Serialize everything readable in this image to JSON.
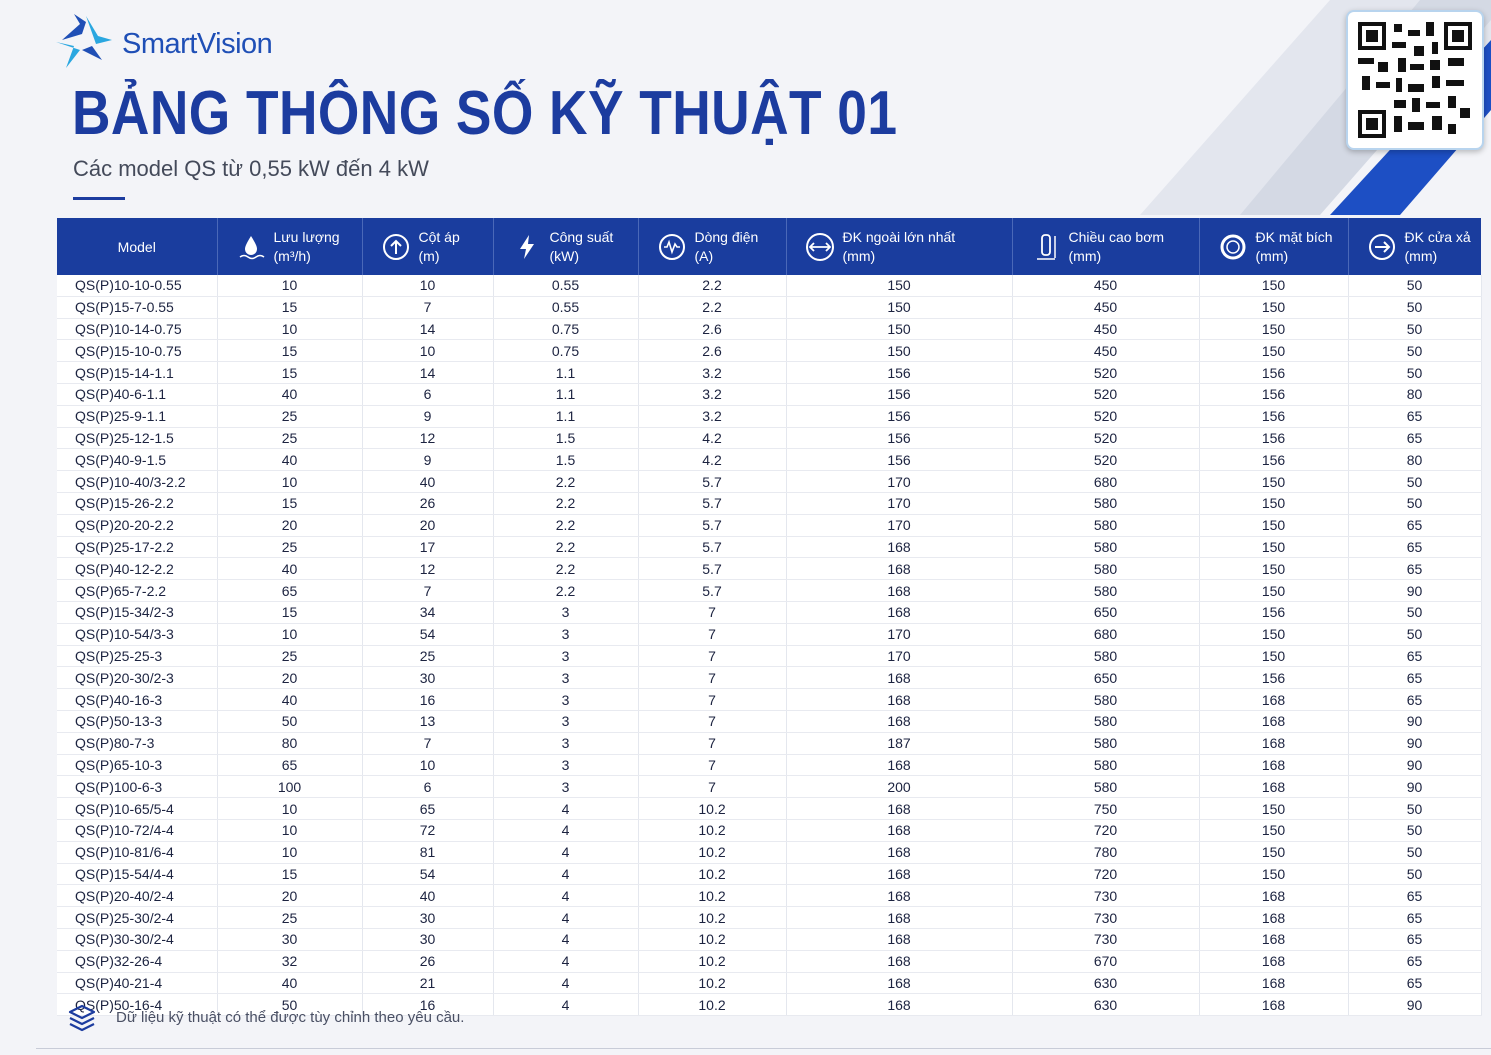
{
  "header": {
    "brand": "SmartVision",
    "title": "BẢNG THÔNG SỐ KỸ THUẬT 01",
    "subtitle": "Các model QS từ 0,55 kW đến 4 kW"
  },
  "table": {
    "headers": [
      {
        "label": "Model"
      },
      {
        "label": "Lưu lượng",
        "unit": "(m³/h)"
      },
      {
        "label": "Cột áp",
        "unit": "(m)"
      },
      {
        "label": "Công suất",
        "unit": "(kW)"
      },
      {
        "label": "Dòng điện",
        "unit": "(A)"
      },
      {
        "label": "ĐK ngoài lớn nhất",
        "unit": "(mm)"
      },
      {
        "label": "Chiều cao bơm",
        "unit": "(mm)"
      },
      {
        "label": "ĐK mặt bích",
        "unit": "(mm)"
      },
      {
        "label": "ĐK cửa xả",
        "unit": "(mm)"
      }
    ],
    "rows": [
      [
        "QS(P)10-10-0.55",
        10,
        10,
        0.55,
        2.2,
        150,
        450,
        150,
        50
      ],
      [
        "QS(P)15-7-0.55",
        15,
        7,
        0.55,
        2.2,
        150,
        450,
        150,
        50
      ],
      [
        "QS(P)10-14-0.75",
        10,
        14,
        0.75,
        2.6,
        150,
        450,
        150,
        50
      ],
      [
        "QS(P)15-10-0.75",
        15,
        10,
        0.75,
        2.6,
        150,
        450,
        150,
        50
      ],
      [
        "QS(P)15-14-1.1",
        15,
        14,
        1.1,
        3.2,
        156,
        520,
        156,
        50
      ],
      [
        "QS(P)40-6-1.1",
        40,
        6,
        1.1,
        3.2,
        156,
        520,
        156,
        80
      ],
      [
        "QS(P)25-9-1.1",
        25,
        9,
        1.1,
        3.2,
        156,
        520,
        156,
        65
      ],
      [
        "QS(P)25-12-1.5",
        25,
        12,
        1.5,
        4.2,
        156,
        520,
        156,
        65
      ],
      [
        "QS(P)40-9-1.5",
        40,
        9,
        1.5,
        4.2,
        156,
        520,
        156,
        80
      ],
      [
        "QS(P)10-40/3-2.2",
        10,
        40,
        2.2,
        5.7,
        170,
        680,
        150,
        50
      ],
      [
        "QS(P)15-26-2.2",
        15,
        26,
        2.2,
        5.7,
        170,
        580,
        150,
        50
      ],
      [
        "QS(P)20-20-2.2",
        20,
        20,
        2.2,
        5.7,
        170,
        580,
        150,
        65
      ],
      [
        "QS(P)25-17-2.2",
        25,
        17,
        2.2,
        5.7,
        168,
        580,
        150,
        65
      ],
      [
        "QS(P)40-12-2.2",
        40,
        12,
        2.2,
        5.7,
        168,
        580,
        150,
        65
      ],
      [
        "QS(P)65-7-2.2",
        65,
        7,
        2.2,
        5.7,
        168,
        580,
        150,
        90
      ],
      [
        "QS(P)15-34/2-3",
        15,
        34,
        3,
        7,
        168,
        650,
        156,
        50
      ],
      [
        "QS(P)10-54/3-3",
        10,
        54,
        3,
        7,
        170,
        680,
        150,
        50
      ],
      [
        "QS(P)25-25-3",
        25,
        25,
        3,
        7,
        170,
        580,
        150,
        65
      ],
      [
        "QS(P)20-30/2-3",
        20,
        30,
        3,
        7,
        168,
        650,
        156,
        65
      ],
      [
        "QS(P)40-16-3",
        40,
        16,
        3,
        7,
        168,
        580,
        168,
        65
      ],
      [
        "QS(P)50-13-3",
        50,
        13,
        3,
        7,
        168,
        580,
        168,
        90
      ],
      [
        "QS(P)80-7-3",
        80,
        7,
        3,
        7,
        187,
        580,
        168,
        90
      ],
      [
        "QS(P)65-10-3",
        65,
        10,
        3,
        7,
        168,
        580,
        168,
        90
      ],
      [
        "QS(P)100-6-3",
        100,
        6,
        3,
        7,
        200,
        580,
        168,
        90
      ],
      [
        "QS(P)10-65/5-4",
        10,
        65,
        4,
        10.2,
        168,
        750,
        150,
        50
      ],
      [
        "QS(P)10-72/4-4",
        10,
        72,
        4,
        10.2,
        168,
        720,
        150,
        50
      ],
      [
        "QS(P)10-81/6-4",
        10,
        81,
        4,
        10.2,
        168,
        780,
        150,
        50
      ],
      [
        "QS(P)15-54/4-4",
        15,
        54,
        4,
        10.2,
        168,
        720,
        150,
        50
      ],
      [
        "QS(P)20-40/2-4",
        20,
        40,
        4,
        10.2,
        168,
        730,
        168,
        65
      ],
      [
        "QS(P)25-30/2-4",
        25,
        30,
        4,
        10.2,
        168,
        730,
        168,
        65
      ],
      [
        "QS(P)30-30/2-4",
        30,
        30,
        4,
        10.2,
        168,
        730,
        168,
        65
      ],
      [
        "QS(P)32-26-4",
        32,
        26,
        4,
        10.2,
        168,
        670,
        168,
        65
      ],
      [
        "QS(P)40-21-4",
        40,
        21,
        4,
        10.2,
        168,
        630,
        168,
        65
      ],
      [
        "QS(P)50-16-4",
        50,
        16,
        4,
        10.2,
        168,
        630,
        168,
        90
      ]
    ]
  },
  "footer": {
    "note": "Dữ liệu kỹ thuật có thể được tùy chỉnh theo yêu cầu."
  }
}
